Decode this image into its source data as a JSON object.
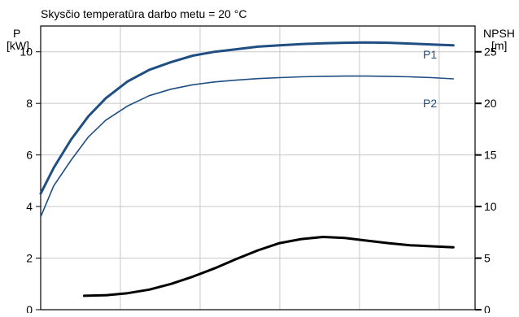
{
  "chart_data": {
    "type": "line",
    "title": "Skysčio temperatūra darbo metu = 20 °C",
    "ylabel_left": [
      "P",
      "[kW]"
    ],
    "ylabel_right": [
      "NPSH",
      "[m]"
    ],
    "ylim_left": [
      0,
      11
    ],
    "ylim_right": [
      0,
      27.5
    ],
    "yticks_left": [
      0,
      2,
      4,
      6,
      8,
      10
    ],
    "yticks_right": [
      0,
      5,
      10,
      15,
      20,
      25
    ],
    "xlim": [
      0,
      100
    ],
    "grid": true,
    "series": [
      {
        "name": "P1",
        "axis": "left",
        "color": "#1f4e82",
        "width": 3,
        "x": [
          0,
          3,
          7,
          11,
          15,
          20,
          25,
          30,
          35,
          40,
          45,
          50,
          55,
          60,
          65,
          70,
          75,
          80,
          85,
          90,
          95
        ],
        "y": [
          4.5,
          5.5,
          6.6,
          7.5,
          8.2,
          8.85,
          9.3,
          9.6,
          9.85,
          10.0,
          10.1,
          10.2,
          10.25,
          10.3,
          10.33,
          10.35,
          10.36,
          10.35,
          10.32,
          10.28,
          10.25
        ]
      },
      {
        "name": "P2",
        "axis": "left",
        "color": "#1f4e82",
        "width": 1.6,
        "x": [
          0,
          3,
          7,
          11,
          15,
          20,
          25,
          30,
          35,
          40,
          45,
          50,
          55,
          60,
          65,
          70,
          75,
          80,
          85,
          90,
          95
        ],
        "y": [
          3.6,
          4.8,
          5.8,
          6.7,
          7.35,
          7.9,
          8.3,
          8.55,
          8.72,
          8.83,
          8.9,
          8.96,
          9.0,
          9.03,
          9.05,
          9.06,
          9.06,
          9.05,
          9.03,
          9.0,
          8.95
        ]
      },
      {
        "name": "NPSH",
        "axis": "right",
        "color": "#000000",
        "width": 3,
        "x": [
          10,
          15,
          20,
          25,
          30,
          35,
          40,
          45,
          50,
          55,
          60,
          65,
          70,
          75,
          80,
          85,
          90,
          95
        ],
        "y": [
          1.35,
          1.4,
          1.6,
          1.95,
          2.5,
          3.2,
          4.0,
          4.9,
          5.75,
          6.45,
          6.85,
          7.05,
          6.95,
          6.7,
          6.45,
          6.25,
          6.15,
          6.05
        ]
      }
    ],
    "series_labels": [
      "P1",
      "P2"
    ]
  }
}
